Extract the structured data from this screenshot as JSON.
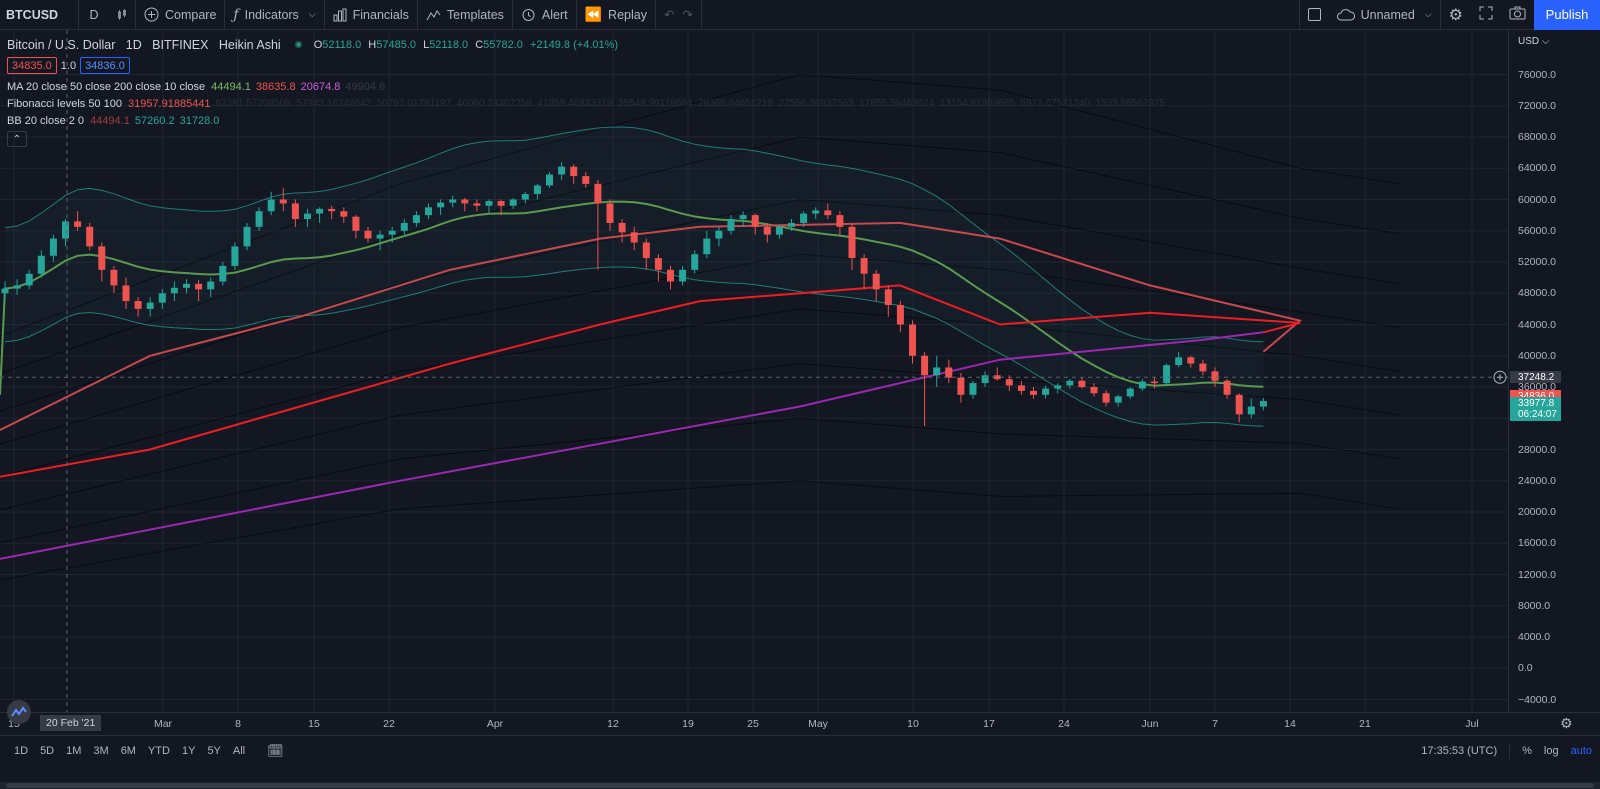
{
  "toolbar": {
    "symbol": "BTCUSD",
    "interval": "D",
    "compare": "Compare",
    "indicators": "Indicators",
    "financials": "Financials",
    "templates": "Templates",
    "alert": "Alert",
    "replay": "Replay",
    "layout_name": "Unnamed",
    "publish": "Publish"
  },
  "legend": {
    "title": "Bitcoin / U.S. Dollar   1D   BITFINEX   Heikin Ashi",
    "open_label": "O",
    "open": "52118.0",
    "high_label": "H",
    "high": "57485.0",
    "low_label": "L",
    "low": "52118.0",
    "close_label": "C",
    "close": "55782.0",
    "change": "+2149.8 (+4.01%)",
    "bid": "34835.0",
    "qty": "1.0",
    "ask": "34836.0",
    "ma": {
      "name": "MA 20 close 50 close 200 close 10 close",
      "v1": "44494.1",
      "v2": "38635.8",
      "v3": "20674.8",
      "v4": "49904.6"
    },
    "fib": {
      "name": "Fibonacci levels 50 100",
      "v1": "31957.91885441",
      "rest": "62381.57208508  57943.16249642  50761.01781197  46060.24307258  41359.46833319  35548.99119664  28366.84651219  22556.36937563  17855.59463624  13154.81989685  5972.67521240  1533.86562375"
    },
    "bb": {
      "name": "BB 20 close 2 0",
      "v1": "44494.1",
      "v2": "57260.2",
      "v3": "31728.0"
    }
  },
  "price_axis": {
    "currency": "USD",
    "labels": [
      "76000.0",
      "72000.0",
      "68000.0",
      "64000.0",
      "60000.0",
      "56000.0",
      "52000.0",
      "48000.0",
      "44000.0",
      "40000.0",
      "36000.0",
      "32000.0",
      "28000.0",
      "24000.0",
      "20000.0",
      "16000.0",
      "12000.0",
      "8000.0",
      "4000.0",
      "0.0",
      "−4000.0"
    ],
    "crosshair_price": "37248.2",
    "bid_tag": "34836.0",
    "last_price": "33977.8",
    "countdown": "06:24:07"
  },
  "time_axis": {
    "labels": [
      "15",
      "Mar",
      "8",
      "15",
      "22",
      "Apr",
      "12",
      "19",
      "25",
      "May",
      "10",
      "17",
      "24",
      "Jun",
      "7",
      "14",
      "21",
      "Jul"
    ],
    "crosshair_date": "20 Feb '21"
  },
  "bottom": {
    "ranges": [
      "1D",
      "5D",
      "1M",
      "3M",
      "6M",
      "YTD",
      "1Y",
      "5Y",
      "All"
    ],
    "clock": "17:35:53 (UTC)",
    "pct": "%",
    "log": "log",
    "auto": "auto"
  },
  "chart_data": {
    "type": "candlestick",
    "style": "Heikin Ashi",
    "ylim": [
      -6000,
      80000
    ],
    "colors": {
      "up": "#26a69a",
      "down": "#ef5350",
      "ma20": "#5b9a4e",
      "ma50": "#c8494c",
      "ma200": "#ee1d23",
      "ma10": "#9c27b0",
      "bb": "#26a69a"
    },
    "candles": [
      [
        48000,
        49500,
        47000,
        48600
      ],
      [
        48600,
        49800,
        47800,
        49000
      ],
      [
        49000,
        51000,
        48500,
        50500
      ],
      [
        50500,
        53500,
        50000,
        52800
      ],
      [
        52800,
        55500,
        52000,
        55000
      ],
      [
        55000,
        57500,
        54000,
        57200
      ],
      [
        57200,
        58500,
        56000,
        56500
      ],
      [
        56500,
        57000,
        53500,
        54000
      ],
      [
        54000,
        54500,
        49500,
        51000
      ],
      [
        51000,
        51500,
        48000,
        49000
      ],
      [
        49000,
        50000,
        46000,
        47000
      ],
      [
        47000,
        47500,
        45000,
        46000
      ],
      [
        46000,
        47500,
        45000,
        46800
      ],
      [
        46800,
        48500,
        46000,
        48000
      ],
      [
        48000,
        49500,
        47000,
        48700
      ],
      [
        48700,
        49800,
        48000,
        49200
      ],
      [
        49200,
        49700,
        47000,
        48500
      ],
      [
        48500,
        50000,
        47500,
        49500
      ],
      [
        49500,
        52000,
        49000,
        51500
      ],
      [
        51500,
        54500,
        51000,
        54000
      ],
      [
        54000,
        57000,
        53500,
        56500
      ],
      [
        56500,
        59000,
        56000,
        58500
      ],
      [
        58500,
        61000,
        58000,
        60000
      ],
      [
        60000,
        61500,
        58500,
        59500
      ],
      [
        59500,
        60000,
        56500,
        57500
      ],
      [
        57500,
        58800,
        56500,
        58200
      ],
      [
        58200,
        59000,
        57000,
        58800
      ],
      [
        58800,
        59200,
        57500,
        58500
      ],
      [
        58500,
        59000,
        57000,
        57800
      ],
      [
        57800,
        58000,
        55000,
        56000
      ],
      [
        56000,
        56500,
        54500,
        55000
      ],
      [
        55000,
        56000,
        53500,
        55500
      ],
      [
        55500,
        56500,
        54500,
        56000
      ],
      [
        56000,
        57500,
        55500,
        57000
      ],
      [
        57000,
        58500,
        56500,
        58000
      ],
      [
        58000,
        59500,
        57500,
        59000
      ],
      [
        59000,
        60000,
        58000,
        59600
      ],
      [
        59600,
        60500,
        59000,
        60000
      ],
      [
        60000,
        60200,
        58500,
        59500
      ],
      [
        59500,
        60000,
        58500,
        59200
      ],
      [
        59200,
        60000,
        58200,
        59800
      ],
      [
        59800,
        60000,
        58000,
        59200
      ],
      [
        59200,
        60200,
        58800,
        60000
      ],
      [
        60000,
        61000,
        59500,
        60700
      ],
      [
        60700,
        62000,
        60000,
        61800
      ],
      [
        61800,
        63500,
        61500,
        63200
      ],
      [
        63200,
        64800,
        62500,
        64200
      ],
      [
        64200,
        64500,
        62000,
        63000
      ],
      [
        63000,
        63500,
        61500,
        62000
      ],
      [
        62000,
        62500,
        51000,
        59500
      ],
      [
        59500,
        60000,
        56000,
        57000
      ],
      [
        57000,
        57500,
        54500,
        55800
      ],
      [
        55800,
        56500,
        53500,
        54500
      ],
      [
        54500,
        55000,
        51000,
        52500
      ],
      [
        52500,
        53000,
        49500,
        51000
      ],
      [
        51000,
        51500,
        48500,
        49500
      ],
      [
        49500,
        51500,
        49000,
        51000
      ],
      [
        51000,
        53500,
        50500,
        53000
      ],
      [
        53000,
        56000,
        52500,
        55000
      ],
      [
        55000,
        56500,
        54000,
        56000
      ],
      [
        56000,
        58000,
        55500,
        57500
      ],
      [
        57500,
        58500,
        56500,
        58000
      ],
      [
        58000,
        58200,
        55500,
        56500
      ],
      [
        56500,
        57000,
        54500,
        55500
      ],
      [
        55500,
        56800,
        55000,
        56500
      ],
      [
        56500,
        57500,
        56000,
        57000
      ],
      [
        57000,
        58500,
        56500,
        58200
      ],
      [
        58200,
        59000,
        57500,
        58600
      ],
      [
        58600,
        59500,
        57500,
        58000
      ],
      [
        58000,
        58500,
        55500,
        56500
      ],
      [
        56500,
        56800,
        51000,
        52500
      ],
      [
        52500,
        53000,
        48500,
        50500
      ],
      [
        50500,
        51000,
        47000,
        48500
      ],
      [
        48500,
        49000,
        45000,
        46500
      ],
      [
        46500,
        47000,
        43000,
        44000
      ],
      [
        44000,
        44500,
        39000,
        40000
      ],
      [
        40000,
        40500,
        31000,
        37500
      ],
      [
        37500,
        40000,
        36000,
        38500
      ],
      [
        38500,
        39500,
        36500,
        37200
      ],
      [
        37200,
        37800,
        34000,
        35000
      ],
      [
        35000,
        36800,
        34500,
        36500
      ],
      [
        36500,
        38000,
        36000,
        37500
      ],
      [
        37500,
        38500,
        36800,
        37000
      ],
      [
        37000,
        37500,
        35500,
        36200
      ],
      [
        36200,
        36800,
        35000,
        35500
      ],
      [
        35500,
        36000,
        34500,
        35000
      ],
      [
        35000,
        36200,
        34500,
        35800
      ],
      [
        35800,
        36500,
        35200,
        36200
      ],
      [
        36200,
        37000,
        35800,
        36800
      ],
      [
        36800,
        37200,
        35800,
        36000
      ],
      [
        36000,
        36500,
        34800,
        35200
      ],
      [
        35200,
        35600,
        33500,
        34000
      ],
      [
        34000,
        35000,
        33500,
        34800
      ],
      [
        34800,
        36000,
        34500,
        35800
      ],
      [
        35800,
        37000,
        35500,
        36700
      ],
      [
        36700,
        37200,
        35800,
        36500
      ],
      [
        36500,
        39000,
        36200,
        38800
      ],
      [
        38800,
        40500,
        38500,
        39800
      ],
      [
        39800,
        40000,
        38500,
        39000
      ],
      [
        39000,
        39500,
        37500,
        38000
      ],
      [
        38000,
        38500,
        36000,
        36800
      ],
      [
        36800,
        37000,
        34500,
        35000
      ],
      [
        35000,
        35200,
        31500,
        32500
      ],
      [
        32500,
        34500,
        32000,
        33500
      ],
      [
        33500,
        34600,
        33000,
        34200
      ]
    ]
  }
}
